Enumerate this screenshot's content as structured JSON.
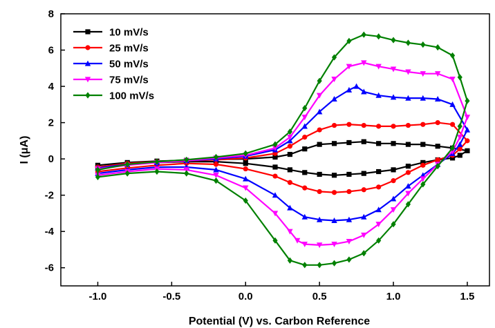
{
  "chart_data": {
    "type": "line",
    "title": "",
    "xlabel": "Potential (V) vs. Carbon Reference",
    "ylabel": "I (μA)",
    "xlim": [
      -1.25,
      1.65
    ],
    "ylim": [
      -7,
      8
    ],
    "xticks": [
      -1.0,
      -0.5,
      0.0,
      0.5,
      1.0,
      1.5
    ],
    "yticks": [
      -6,
      -4,
      -2,
      0,
      2,
      4,
      6,
      8
    ],
    "xtick_labels": [
      "-1.0",
      "-0.5",
      "0.0",
      "0.5",
      "1.0",
      "1.5"
    ],
    "ytick_labels": [
      "-6",
      "-4",
      "-2",
      "0",
      "2",
      "4",
      "6",
      "8"
    ],
    "grid": false,
    "legend_position": "top-left",
    "series": [
      {
        "name": "10 mV/s",
        "color": "#000000",
        "marker": "square",
        "x": [
          -1.0,
          -0.8,
          -0.6,
          -0.4,
          -0.2,
          0.0,
          0.2,
          0.3,
          0.4,
          0.5,
          0.6,
          0.7,
          0.8,
          0.9,
          1.0,
          1.1,
          1.2,
          1.3,
          1.4,
          1.5,
          1.45,
          1.4,
          1.3,
          1.2,
          1.1,
          1.0,
          0.9,
          0.8,
          0.7,
          0.6,
          0.5,
          0.4,
          0.3,
          0.2,
          0.0,
          -0.2,
          -0.4,
          -0.6,
          -0.8,
          -1.0
        ],
        "y": [
          -0.35,
          -0.2,
          -0.12,
          -0.08,
          -0.03,
          0.0,
          0.1,
          0.25,
          0.55,
          0.8,
          0.85,
          0.9,
          0.95,
          0.85,
          0.85,
          0.8,
          0.8,
          0.7,
          0.6,
          0.45,
          0.2,
          0.05,
          -0.05,
          -0.2,
          -0.4,
          -0.6,
          -0.7,
          -0.8,
          -0.85,
          -0.9,
          -0.85,
          -0.75,
          -0.6,
          -0.45,
          -0.25,
          -0.15,
          -0.15,
          -0.2,
          -0.3,
          -0.5
        ]
      },
      {
        "name": "25 mV/s",
        "color": "#ff0000",
        "marker": "circle",
        "x": [
          -1.0,
          -0.8,
          -0.6,
          -0.4,
          -0.2,
          0.0,
          0.2,
          0.3,
          0.4,
          0.5,
          0.6,
          0.7,
          0.8,
          0.9,
          1.0,
          1.1,
          1.2,
          1.3,
          1.4,
          1.5,
          1.45,
          1.4,
          1.3,
          1.2,
          1.1,
          1.0,
          0.9,
          0.8,
          0.7,
          0.6,
          0.5,
          0.4,
          0.3,
          0.2,
          0.0,
          -0.2,
          -0.4,
          -0.6,
          -0.8,
          -1.0
        ],
        "y": [
          -0.45,
          -0.25,
          -0.15,
          -0.1,
          -0.05,
          0.05,
          0.3,
          0.7,
          1.2,
          1.6,
          1.85,
          1.9,
          1.85,
          1.8,
          1.8,
          1.85,
          1.9,
          2.0,
          1.9,
          1.0,
          0.55,
          0.2,
          -0.05,
          -0.35,
          -0.75,
          -1.2,
          -1.55,
          -1.7,
          -1.8,
          -1.85,
          -1.8,
          -1.6,
          -1.3,
          -0.95,
          -0.55,
          -0.3,
          -0.25,
          -0.35,
          -0.5,
          -0.7
        ]
      },
      {
        "name": "50 mV/s",
        "color": "#0000ff",
        "marker": "triangle-up",
        "x": [
          -1.0,
          -0.8,
          -0.6,
          -0.4,
          -0.2,
          0.0,
          0.2,
          0.3,
          0.4,
          0.5,
          0.6,
          0.7,
          0.75,
          0.8,
          0.9,
          1.0,
          1.1,
          1.2,
          1.3,
          1.4,
          1.5,
          1.45,
          1.4,
          1.3,
          1.2,
          1.1,
          1.0,
          0.9,
          0.8,
          0.7,
          0.6,
          0.5,
          0.4,
          0.3,
          0.2,
          0.0,
          -0.2,
          -0.4,
          -0.6,
          -0.8,
          -1.0
        ],
        "y": [
          -0.5,
          -0.3,
          -0.2,
          -0.1,
          0.0,
          0.15,
          0.5,
          1.0,
          1.8,
          2.6,
          3.3,
          3.8,
          4.0,
          3.7,
          3.5,
          3.4,
          3.35,
          3.35,
          3.3,
          3.0,
          1.6,
          0.8,
          0.3,
          -0.3,
          -0.9,
          -1.5,
          -2.2,
          -2.8,
          -3.2,
          -3.35,
          -3.4,
          -3.35,
          -3.2,
          -2.7,
          -2.0,
          -1.1,
          -0.6,
          -0.45,
          -0.45,
          -0.6,
          -0.8
        ]
      },
      {
        "name": "75 mV/s",
        "color": "#ff00ff",
        "marker": "triangle-down",
        "x": [
          -1.0,
          -0.8,
          -0.6,
          -0.4,
          -0.2,
          0.0,
          0.2,
          0.3,
          0.4,
          0.5,
          0.6,
          0.7,
          0.8,
          0.9,
          1.0,
          1.1,
          1.2,
          1.3,
          1.4,
          1.5,
          1.45,
          1.4,
          1.3,
          1.2,
          1.1,
          1.0,
          0.9,
          0.8,
          0.7,
          0.6,
          0.5,
          0.4,
          0.35,
          0.3,
          0.2,
          0.0,
          -0.2,
          -0.4,
          -0.6,
          -0.8,
          -1.0
        ],
        "y": [
          -0.55,
          -0.35,
          -0.2,
          -0.1,
          0.05,
          0.2,
          0.6,
          1.2,
          2.3,
          3.5,
          4.4,
          5.1,
          5.3,
          5.1,
          4.95,
          4.8,
          4.7,
          4.7,
          4.4,
          2.3,
          1.2,
          0.4,
          -0.3,
          -1.1,
          -1.9,
          -2.8,
          -3.6,
          -4.2,
          -4.55,
          -4.7,
          -4.75,
          -4.7,
          -4.5,
          -4.0,
          -3.0,
          -1.6,
          -0.9,
          -0.6,
          -0.55,
          -0.7,
          -0.9
        ]
      },
      {
        "name": "100 mV/s",
        "color": "#008000",
        "marker": "diamond",
        "x": [
          -1.0,
          -0.8,
          -0.6,
          -0.4,
          -0.2,
          0.0,
          0.2,
          0.3,
          0.4,
          0.5,
          0.6,
          0.7,
          0.8,
          0.9,
          1.0,
          1.1,
          1.2,
          1.3,
          1.4,
          1.45,
          1.5,
          1.45,
          1.4,
          1.3,
          1.2,
          1.1,
          1.0,
          0.9,
          0.8,
          0.7,
          0.6,
          0.5,
          0.4,
          0.3,
          0.2,
          0.0,
          -0.2,
          -0.4,
          -0.6,
          -0.8,
          -1.0
        ],
        "y": [
          -0.6,
          -0.3,
          -0.15,
          -0.05,
          0.1,
          0.3,
          0.8,
          1.5,
          2.8,
          4.3,
          5.6,
          6.5,
          6.85,
          6.75,
          6.55,
          6.4,
          6.3,
          6.15,
          5.7,
          4.5,
          3.2,
          1.8,
          0.6,
          -0.4,
          -1.4,
          -2.5,
          -3.6,
          -4.5,
          -5.2,
          -5.55,
          -5.75,
          -5.85,
          -5.85,
          -5.6,
          -4.5,
          -2.3,
          -1.2,
          -0.8,
          -0.7,
          -0.8,
          -1.0
        ]
      }
    ]
  }
}
